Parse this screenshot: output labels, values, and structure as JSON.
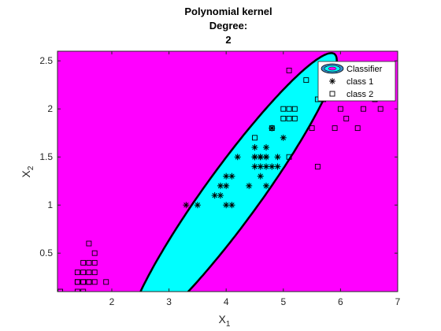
{
  "chart_data": {
    "type": "scatter",
    "title": [
      "Polynomial kernel",
      "Degree:",
      "2"
    ],
    "xlabel": "X",
    "xlabel_sub": "1",
    "ylabel": "X",
    "ylabel_sub": "2",
    "xlim": [
      1.05,
      7.0
    ],
    "ylim": [
      0.1,
      2.6
    ],
    "xticks": [
      "2",
      "3",
      "4",
      "5",
      "6",
      "7"
    ],
    "yticks": [
      "0.5",
      "1",
      "1.5",
      "2",
      "2.5"
    ],
    "legend": {
      "position": "top-right",
      "entries": [
        "Classifier",
        "class 1",
        "class 2"
      ]
    },
    "colors": {
      "outside_region": "#FF00FF",
      "inside_region": "#00FFFF",
      "boundary": "#000000"
    },
    "classifier_region": {
      "shape": "ellipse",
      "center": [
        4.12,
        1.12
      ],
      "semi_axes": [
        2.3,
        0.37
      ],
      "angle_deg": 38.5
    },
    "series": [
      {
        "name": "class 1",
        "marker": "*",
        "x": [
          3.3,
          3.5,
          3.8,
          3.9,
          3.9,
          4.0,
          4.0,
          4.0,
          4.1,
          4.1,
          4.2,
          4.4,
          4.5,
          4.5,
          4.5,
          4.5,
          4.6,
          4.6,
          4.6,
          4.6,
          4.7,
          4.7,
          4.7,
          4.7,
          4.7,
          4.8,
          4.8,
          4.9,
          4.9,
          5.0
        ],
        "y": [
          1.0,
          1.0,
          1.1,
          1.1,
          1.2,
          1.0,
          1.2,
          1.3,
          1.0,
          1.3,
          1.5,
          1.2,
          1.4,
          1.5,
          1.5,
          1.6,
          1.3,
          1.4,
          1.5,
          1.5,
          1.2,
          1.4,
          1.5,
          1.5,
          1.6,
          1.4,
          1.8,
          1.4,
          1.5,
          1.7
        ]
      },
      {
        "name": "class 2",
        "marker": "square",
        "x": [
          1.1,
          1.4,
          1.4,
          1.4,
          1.4,
          1.5,
          1.5,
          1.5,
          1.5,
          1.5,
          1.6,
          1.6,
          1.6,
          1.6,
          1.6,
          1.7,
          1.7,
          1.7,
          1.7,
          1.9,
          4.5,
          4.8,
          5.0,
          5.0,
          5.1,
          5.1,
          5.1,
          5.1,
          5.2,
          5.2,
          5.4,
          5.5,
          5.6,
          5.6,
          5.7,
          5.8,
          5.9,
          6.0,
          6.1,
          6.1,
          6.3,
          6.4,
          6.6,
          6.7
        ],
        "y": [
          0.1,
          0.2,
          0.3,
          0.2,
          0.1,
          0.4,
          0.3,
          0.2,
          0.2,
          0.1,
          0.6,
          0.4,
          0.3,
          0.2,
          0.2,
          0.5,
          0.4,
          0.3,
          0.2,
          0.2,
          1.7,
          1.8,
          1.9,
          2.0,
          2.4,
          1.9,
          2.0,
          1.5,
          2.0,
          1.9,
          2.3,
          1.8,
          2.1,
          1.4,
          2.1,
          2.2,
          1.8,
          2.0,
          2.3,
          1.9,
          1.8,
          2.0,
          2.1,
          2.0
        ]
      }
    ]
  }
}
